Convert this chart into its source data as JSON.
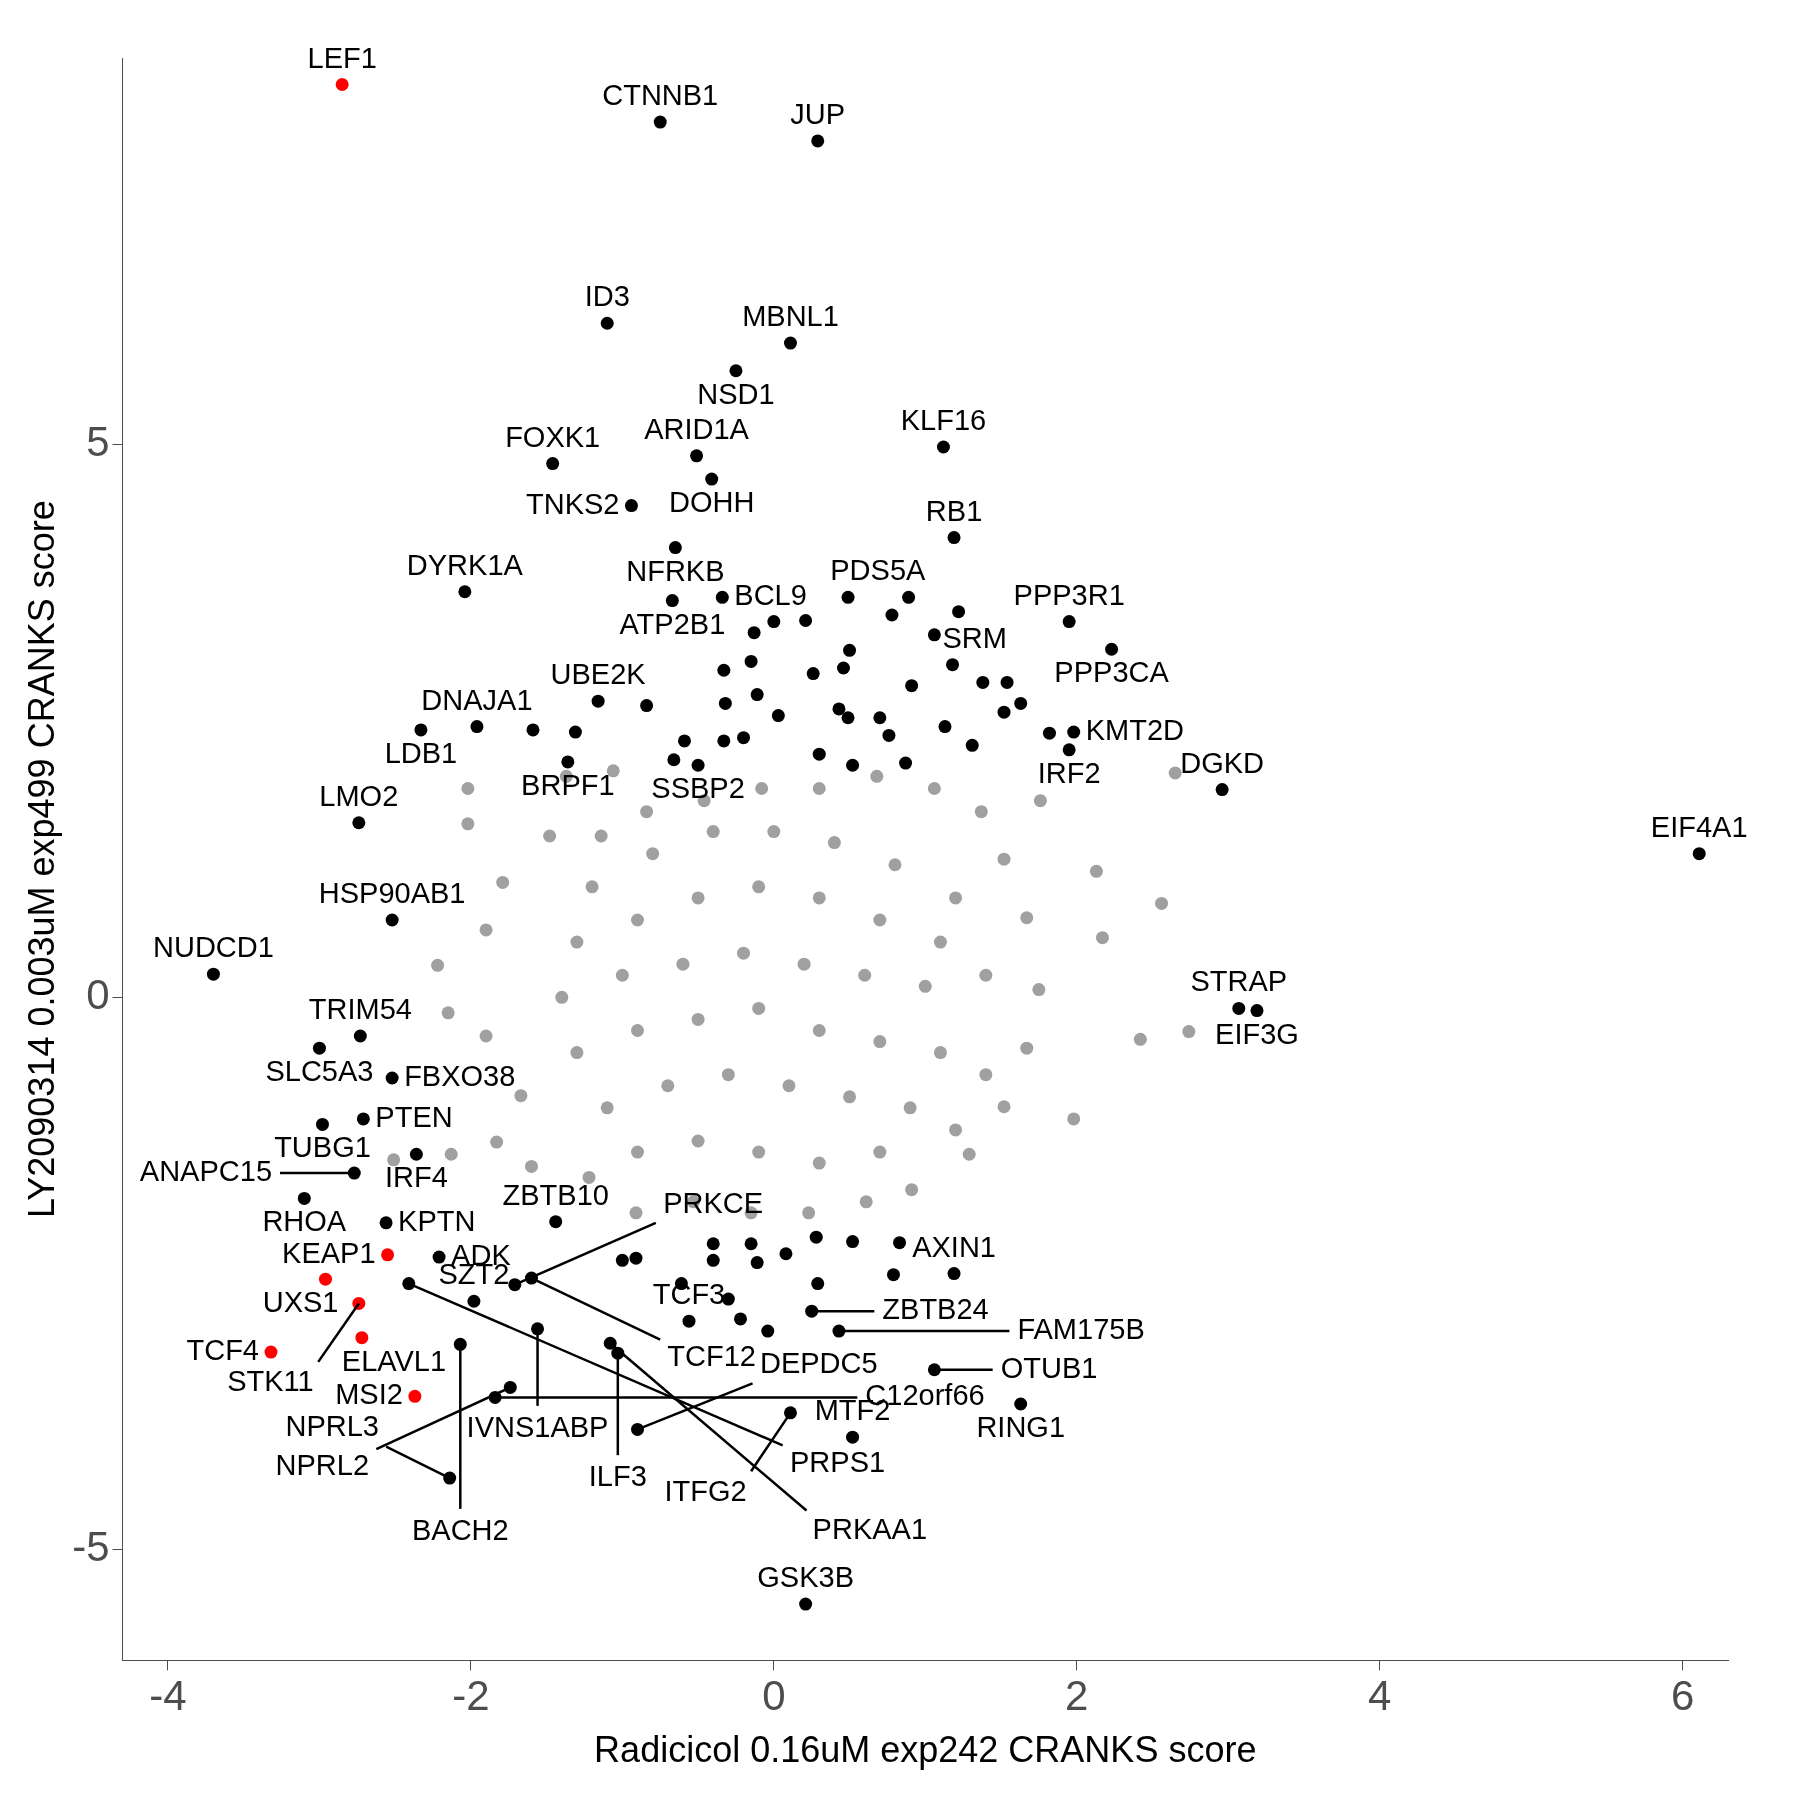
{
  "chart_data": {
    "type": "scatter",
    "xlim": [
      -4.3,
      6.3
    ],
    "ylim": [
      -6,
      8.5
    ],
    "xlabel": "Radicicol 0.16uM exp242 CRANKS score",
    "ylabel": "LY2090314 0.003uM exp499 CRANKS score",
    "xticks": [
      -4,
      -2,
      0,
      2,
      4,
      6
    ],
    "yticks": [
      -5,
      0,
      5
    ],
    "grid": false,
    "legend": false,
    "marker": "circle",
    "series": [
      {
        "color": "#a0a0a0",
        "x": [
          2.65,
          2.74,
          2.42,
          2.56,
          2.17,
          1.98,
          1.76,
          2.13,
          -2.02,
          -2.02,
          -2.22,
          -2.15,
          -2.51,
          -2.13,
          -1.83,
          -1.37,
          -1.06,
          -1.48,
          -1.79,
          -1.9,
          -1.9,
          -1.67,
          -1.6,
          -1.22,
          -0.91,
          -0.53,
          -0.15,
          0.23,
          0.61,
          0.91,
          1.29,
          1.52,
          1.67,
          1.75,
          1.67,
          1.52,
          1.37,
          1.06,
          0.68,
          0.3,
          -0.08,
          -0.46,
          -0.84,
          -1.14,
          -1.2,
          -0.8,
          -0.4,
          0,
          0.4,
          0.8,
          1.2,
          -1.3,
          -0.9,
          -0.5,
          -0.1,
          0.3,
          0.7,
          1.1,
          1.4,
          -1.4,
          -1,
          -0.6,
          -0.2,
          0.2,
          0.6,
          1,
          -1.3,
          -0.9,
          -0.5,
          -0.1,
          0.3,
          0.7,
          1.1,
          1.4,
          -1.1,
          -0.7,
          -0.3,
          0.1,
          0.5,
          0.9,
          1.2,
          -0.9,
          -0.5,
          -0.1,
          0.3,
          0.7
        ],
        "values": [
          2.03,
          -0.31,
          -0.38,
          0.85,
          0.54,
          -1.1,
          1.78,
          1.14,
          1.89,
          1.57,
          0.29,
          -0.14,
          -1.47,
          -1.42,
          -1.31,
          2,
          2.05,
          1.46,
          1.04,
          0.61,
          -0.35,
          -0.89,
          -1.53,
          -1.63,
          -1.95,
          -1.85,
          -1.95,
          -1.95,
          -1.85,
          -1.74,
          -1.42,
          -0.99,
          -0.46,
          0.07,
          0.72,
          1.25,
          1.68,
          1.89,
          2,
          1.89,
          1.89,
          1.78,
          1.68,
          1.46,
          1,
          1.3,
          1.5,
          1.5,
          1.4,
          1.2,
          0.9,
          0.5,
          0.7,
          0.9,
          1,
          0.9,
          0.7,
          0.5,
          0.2,
          0,
          0.2,
          0.3,
          0.4,
          0.3,
          0.2,
          0.1,
          -0.5,
          -0.3,
          -0.2,
          -0.1,
          -0.3,
          -0.4,
          -0.5,
          -0.7,
          -1,
          -0.8,
          -0.7,
          -0.8,
          -0.9,
          -1,
          -1.2,
          -1.4,
          -1.3,
          -1.4,
          -1.5,
          -1.4
        ]
      },
      {
        "color": "#000000",
        "x": [
          -0.75,
          0.29,
          -1.1,
          0.11,
          -0.25,
          1.12,
          -0.51,
          -1.46,
          -0.41,
          -0.94,
          1.19,
          -0.65,
          -2.04,
          -0.34,
          0.49,
          1.95,
          -0.67,
          2.23,
          1.18,
          1.98,
          -1.96,
          -1.16,
          -2.33,
          -1.36,
          -0.5,
          2.96,
          1.95,
          -2.74,
          6.11,
          -2.52,
          -3.7,
          3.07,
          3.19,
          -3,
          -2.73,
          -2.52,
          -2.98,
          -2.71,
          -2.36,
          -2.77,
          -3.1,
          -2.56,
          -2.21,
          -1.44,
          -1.71,
          -1.6,
          -1.56,
          -2.41,
          -2.07,
          -1.74,
          -1.84,
          -1.98,
          -1.08,
          -1.03,
          -2.14,
          -0.9,
          -0.56,
          0.25,
          0.43,
          1.19,
          1.06,
          1.63,
          0.52,
          0.11,
          0.21,
          -0.13,
          0,
          0.21,
          0.5,
          0.46,
          0.26,
          -0.33,
          -0.15,
          -0.32,
          -0.11,
          0.03,
          0.43,
          0.49,
          0.7,
          0.76,
          0.91,
          1.06,
          0.78,
          0.89,
          1.22,
          1.38,
          1.54,
          1.52,
          1.13,
          1.31,
          1.82,
          1.63,
          -0.59,
          -0.33,
          -0.2,
          0.3,
          0.52,
          0.87,
          -0.66,
          -0.84,
          -1.31,
          -1.59,
          -1,
          -0.91,
          -0.4,
          -0.4,
          -0.15,
          -0.11,
          0.08,
          0.28,
          0.52,
          0.29,
          0.79,
          0.83,
          -0.3,
          -0.22,
          -0.04,
          -0.61
        ],
        "values": [
          7.92,
          7.75,
          6.1,
          5.92,
          5.67,
          4.98,
          4.9,
          4.83,
          4.69,
          4.45,
          4.16,
          4.07,
          3.67,
          3.62,
          3.62,
          3.4,
          3.59,
          3.15,
          3.01,
          2.4,
          2.45,
          2.68,
          2.42,
          2.13,
          2.1,
          1.88,
          2.24,
          1.58,
          1.3,
          0.7,
          0.21,
          -0.1,
          -0.12,
          -0.46,
          -0.35,
          -0.73,
          -1.15,
          -1.1,
          -1.42,
          -1.59,
          -1.82,
          -2.04,
          -2.35,
          -2.03,
          -2.6,
          -2.54,
          -3,
          -2.59,
          -3.14,
          -3.53,
          -3.62,
          -2.75,
          -3.13,
          -3.22,
          -4.35,
          -3.91,
          -2.93,
          -2.84,
          -3.02,
          -2.5,
          -3.37,
          -3.68,
          -3.98,
          -3.76,
          -5.49,
          3.3,
          3.4,
          3.41,
          3.14,
          2.98,
          2.93,
          2.96,
          3.04,
          2.66,
          2.74,
          2.55,
          2.61,
          2.53,
          2.53,
          2.37,
          2.82,
          3.28,
          3.46,
          3.62,
          3.49,
          2.85,
          2.85,
          2.58,
          2.45,
          2.28,
          2.39,
          2.66,
          2.32,
          2.32,
          2.35,
          2.2,
          2.1,
          2.12,
          2.15,
          2.64,
          2.4,
          2.42,
          -2.38,
          -2.36,
          -2.23,
          -2.38,
          -2.23,
          -2.4,
          -2.32,
          -2.17,
          -2.21,
          -2.59,
          -2.51,
          -2.22,
          -2.73,
          -2.91,
          -3.02,
          -2.59
        ]
      },
      {
        "color": "#ff0000",
        "x": [
          -2.85,
          -2.55,
          -2.96,
          -2.74,
          -2.72,
          -3.32,
          -2.37
        ],
        "values": [
          8.26,
          -2.33,
          -2.55,
          -2.77,
          -3.08,
          -3.21,
          -3.61
        ]
      }
    ],
    "annotations": [
      {
        "text": "LEF1",
        "x": -2.85,
        "y": 8.26
      },
      {
        "text": "CTNNB1",
        "x": -0.75,
        "y": 7.92
      },
      {
        "text": "JUP",
        "x": 0.29,
        "y": 7.75
      },
      {
        "text": "ID3",
        "x": -1.1,
        "y": 6.1
      },
      {
        "text": "MBNL1",
        "x": 0.11,
        "y": 5.92
      },
      {
        "text": "NSD1",
        "x": -0.25,
        "y": 5.67
      },
      {
        "text": "KLF16",
        "x": 1.12,
        "y": 4.98
      },
      {
        "text": "ARID1A",
        "x": -0.51,
        "y": 4.9
      },
      {
        "text": "FOXK1",
        "x": -1.46,
        "y": 4.83
      },
      {
        "text": "DOHH",
        "x": -0.41,
        "y": 4.69
      },
      {
        "text": "TNKS2",
        "x": -0.94,
        "y": 4.45
      },
      {
        "text": "RB1",
        "x": 1.19,
        "y": 4.16
      },
      {
        "text": "NFRKB",
        "x": -0.65,
        "y": 4.07
      },
      {
        "text": "DYRK1A",
        "x": -2.04,
        "y": 3.67
      },
      {
        "text": "BCL9",
        "x": -0.34,
        "y": 3.62
      },
      {
        "text": "PDS5A",
        "x": 0.49,
        "y": 3.62
      },
      {
        "text": "PPP3R1",
        "x": 1.95,
        "y": 3.4
      },
      {
        "text": "ATP2B1",
        "x": -0.67,
        "y": 3.59
      },
      {
        "text": "PPP3CA",
        "x": 2.23,
        "y": 3.15
      },
      {
        "text": "SRM",
        "x": 1.18,
        "y": 3.01
      },
      {
        "text": "KMT2D",
        "x": 1.98,
        "y": 2.4
      },
      {
        "text": "DNAJA1",
        "x": -1.96,
        "y": 2.45
      },
      {
        "text": "UBE2K",
        "x": -1.16,
        "y": 2.68
      },
      {
        "text": "LDB1",
        "x": -2.33,
        "y": 2.42
      },
      {
        "text": "BRPF1",
        "x": -1.36,
        "y": 2.13
      },
      {
        "text": "SSBP2",
        "x": -0.5,
        "y": 2.1
      },
      {
        "text": "DGKD",
        "x": 2.96,
        "y": 1.88
      },
      {
        "text": "IRF2",
        "x": 1.95,
        "y": 2.24
      },
      {
        "text": "LMO2",
        "x": -2.74,
        "y": 1.58
      },
      {
        "text": "EIF4A1",
        "x": 6.11,
        "y": 1.3
      },
      {
        "text": "HSP90AB1",
        "x": -2.52,
        "y": 0.7
      },
      {
        "text": "NUDCD1",
        "x": -3.7,
        "y": 0.21
      },
      {
        "text": "STRAP",
        "x": 3.07,
        "y": -0.1
      },
      {
        "text": "EIF3G",
        "x": 3.19,
        "y": -0.12
      },
      {
        "text": "SLC5A3",
        "x": -3,
        "y": -0.46
      },
      {
        "text": "TRIM54",
        "x": -2.73,
        "y": -0.35
      },
      {
        "text": "FBXO38",
        "x": -2.52,
        "y": -0.73
      },
      {
        "text": "TUBG1",
        "x": -2.98,
        "y": -1.15
      },
      {
        "text": "PTEN",
        "x": -2.71,
        "y": -1.1
      },
      {
        "text": "IRF4",
        "x": -2.36,
        "y": -1.42
      },
      {
        "text": "ANAPC15",
        "x": -2.77,
        "y": -1.59
      },
      {
        "text": "RHOA",
        "x": -3.1,
        "y": -1.82
      },
      {
        "text": "KPTN",
        "x": -2.56,
        "y": -2.04
      },
      {
        "text": "KEAP1",
        "x": -2.55,
        "y": -2.33
      },
      {
        "text": "ADK",
        "x": -2.21,
        "y": -2.35
      },
      {
        "text": "UXS1",
        "x": -2.96,
        "y": -2.55
      },
      {
        "text": "ZBTB10",
        "x": -1.44,
        "y": -2.03
      },
      {
        "text": "PRKCE",
        "x": -1.71,
        "y": -2.6
      },
      {
        "text": "TCF12",
        "x": -1.6,
        "y": -2.54
      },
      {
        "text": "STK11",
        "x": -2.74,
        "y": -2.77
      },
      {
        "text": "ELAVL1",
        "x": -2.72,
        "y": -3.08
      },
      {
        "text": "IVNS1ABP",
        "x": -1.56,
        "y": -3
      },
      {
        "text": "TCF4",
        "x": -3.32,
        "y": -3.21
      },
      {
        "text": "PRPS1",
        "x": -2.41,
        "y": -2.59
      },
      {
        "text": "BACH2",
        "x": -2.07,
        "y": -3.14
      },
      {
        "text": "NPRL2",
        "x": -1.74,
        "y": -3.53
      },
      {
        "text": "C12orf66",
        "x": -1.84,
        "y": -3.62
      },
      {
        "text": "MSI2",
        "x": -2.37,
        "y": -3.61
      },
      {
        "text": "SZT2",
        "x": -1.98,
        "y": -2.75
      },
      {
        "text": "PRKAA1",
        "x": -1.08,
        "y": -3.13
      },
      {
        "text": "ILF3",
        "x": -1.03,
        "y": -3.22
      },
      {
        "text": "NPRL3",
        "x": -2.14,
        "y": -4.35
      },
      {
        "text": "DEPDC5",
        "x": -0.9,
        "y": -3.91
      },
      {
        "text": "TCF3",
        "x": -0.56,
        "y": -2.93
      },
      {
        "text": "ZBTB24",
        "x": 0.25,
        "y": -2.84
      },
      {
        "text": "FAM175B",
        "x": 0.43,
        "y": -3.02
      },
      {
        "text": "AXIN1",
        "x": 1.19,
        "y": -2.5
      },
      {
        "text": "OTUB1",
        "x": 1.06,
        "y": -3.37
      },
      {
        "text": "RING1",
        "x": 1.63,
        "y": -3.68
      },
      {
        "text": "MTF2",
        "x": 0.52,
        "y": -3.98
      },
      {
        "text": "ITFG2",
        "x": 0.11,
        "y": -3.76
      },
      {
        "text": "GSK3B",
        "x": 0.21,
        "y": -5.49
      }
    ]
  }
}
